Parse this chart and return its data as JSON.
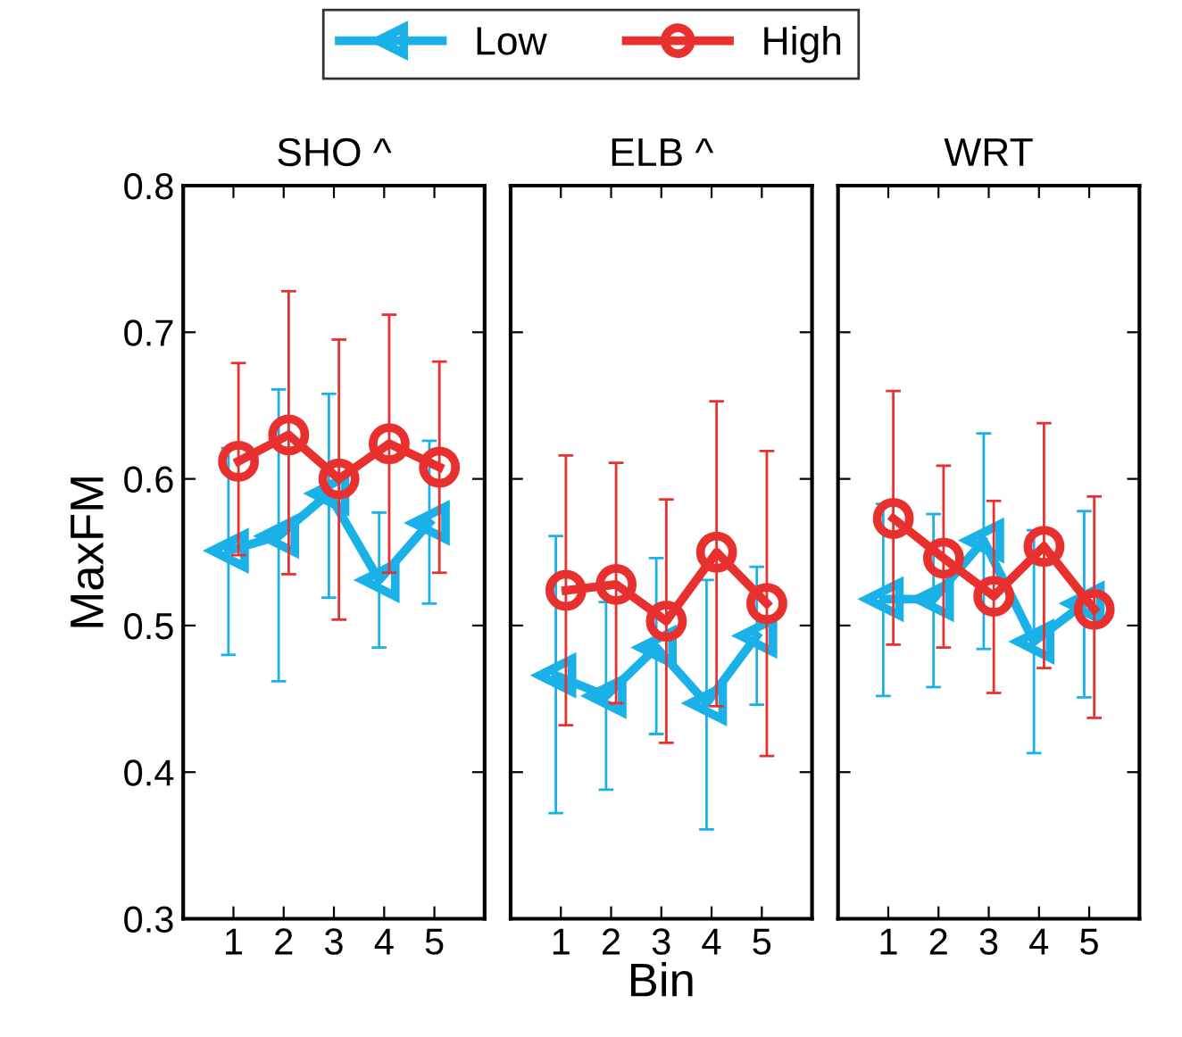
{
  "chart_data": [
    {
      "type": "line",
      "title": "SHO ^",
      "ylabel": "MaxFM",
      "xlim": [
        0,
        6
      ],
      "xticks": [
        1,
        2,
        3,
        4,
        5
      ],
      "ylim": [
        0.3,
        0.8
      ],
      "yticks": [
        0.3,
        0.4,
        0.5,
        0.6,
        0.7,
        0.8
      ],
      "legend": "top",
      "grid": false,
      "series": [
        {
          "name": "Low",
          "color": "#1ab0e8",
          "marker": "triangle",
          "x": [
            0.9,
            1.9,
            2.9,
            3.9,
            4.9
          ],
          "values": [
            0.551,
            0.561,
            0.59,
            0.531,
            0.57
          ],
          "errors": [
            [
              0.48,
              0.621
            ],
            [
              0.462,
              0.661
            ],
            [
              0.519,
              0.658
            ],
            [
              0.485,
              0.577
            ],
            [
              0.515,
              0.626
            ]
          ]
        },
        {
          "name": "High",
          "color": "#e8302f",
          "marker": "circle",
          "x": [
            1.1,
            2.1,
            3.1,
            4.1,
            5.1
          ],
          "values": [
            0.612,
            0.63,
            0.6,
            0.624,
            0.608
          ],
          "errors": [
            [
              0.548,
              0.679
            ],
            [
              0.535,
              0.728
            ],
            [
              0.504,
              0.695
            ],
            [
              0.536,
              0.712
            ],
            [
              0.536,
              0.68
            ]
          ]
        }
      ]
    },
    {
      "type": "line",
      "title": "ELB ^",
      "xlabel": "Bin",
      "xlim": [
        0,
        6
      ],
      "xticks": [
        1,
        2,
        3,
        4,
        5
      ],
      "ylim": [
        0.3,
        0.8
      ],
      "yticks": [
        0.3,
        0.4,
        0.5,
        0.6,
        0.7,
        0.8
      ],
      "tick_labels": "x",
      "grid": false,
      "series": [
        {
          "color": "#1ab0e8",
          "marker": "triangle",
          "x": [
            0.9,
            1.9,
            2.9,
            3.9,
            4.9
          ],
          "values": [
            0.466,
            0.452,
            0.485,
            0.447,
            0.493
          ],
          "errors": [
            [
              0.372,
              0.561
            ],
            [
              0.388,
              0.516
            ],
            [
              0.426,
              0.546
            ],
            [
              0.361,
              0.531
            ],
            [
              0.446,
              0.54
            ]
          ]
        },
        {
          "color": "#e8302f",
          "marker": "circle",
          "x": [
            1.1,
            2.1,
            3.1,
            4.1,
            5.1
          ],
          "values": [
            0.524,
            0.528,
            0.503,
            0.55,
            0.515
          ],
          "errors": [
            [
              0.432,
              0.616
            ],
            [
              0.447,
              0.611
            ],
            [
              0.42,
              0.586
            ],
            [
              0.445,
              0.653
            ],
            [
              0.411,
              0.619
            ]
          ]
        }
      ]
    },
    {
      "type": "line",
      "title": "WRT",
      "xlim": [
        0,
        6
      ],
      "xticks": [
        1,
        2,
        3,
        4,
        5
      ],
      "ylim": [
        0.3,
        0.8
      ],
      "yticks": [
        0.3,
        0.4,
        0.5,
        0.6,
        0.7,
        0.8
      ],
      "tick_labels": "x",
      "grid": false,
      "series": [
        {
          "color": "#1ab0e8",
          "marker": "triangle",
          "x": [
            0.9,
            1.9,
            2.9,
            3.9,
            4.9
          ],
          "values": [
            0.518,
            0.518,
            0.558,
            0.489,
            0.515
          ],
          "errors": [
            [
              0.452,
              0.583
            ],
            [
              0.458,
              0.576
            ],
            [
              0.484,
              0.631
            ],
            [
              0.413,
              0.565
            ],
            [
              0.451,
              0.578
            ]
          ]
        },
        {
          "color": "#e8302f",
          "marker": "circle",
          "x": [
            1.1,
            2.1,
            3.1,
            4.1,
            5.1
          ],
          "values": [
            0.573,
            0.546,
            0.52,
            0.554,
            0.511
          ],
          "errors": [
            [
              0.487,
              0.66
            ],
            [
              0.485,
              0.609
            ],
            [
              0.454,
              0.585
            ],
            [
              0.471,
              0.638
            ],
            [
              0.437,
              0.588
            ]
          ]
        }
      ]
    }
  ]
}
